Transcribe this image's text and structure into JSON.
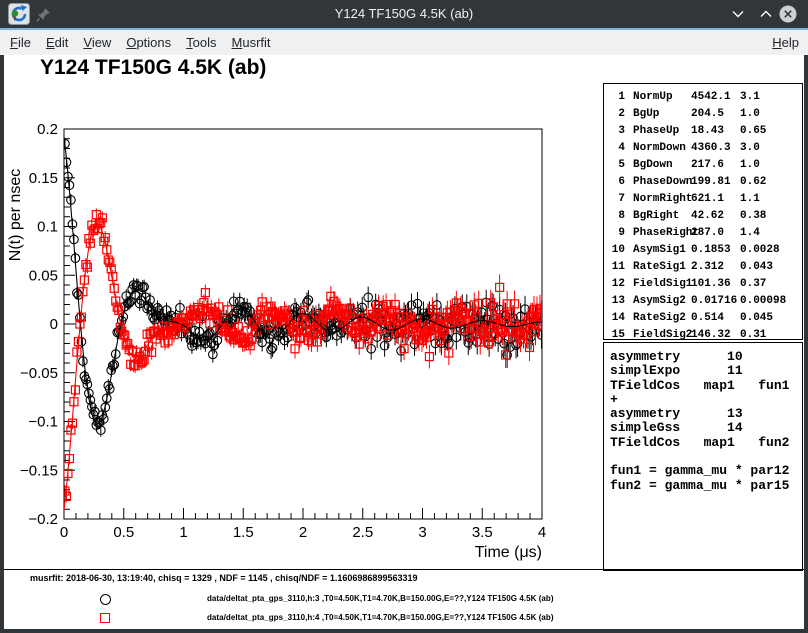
{
  "window": {
    "title": "Y124 TF150G 4.5K (ab)"
  },
  "menu": {
    "items": [
      "File",
      "Edit",
      "View",
      "Options",
      "Tools",
      "Musrfit"
    ],
    "help": "Help"
  },
  "plot_title": "Y124 TF150G 4.5K (ab)",
  "chart_data": {
    "type": "scatter",
    "title": "Y124 TF150G 4.5K (ab)",
    "xlabel": "Time (μs)",
    "ylabel": "N(t) per nsec",
    "xlim": [
      0,
      4
    ],
    "ylim": [
      -0.2,
      0.2
    ],
    "x_major_step": 0.5,
    "x_minor_step": 0.1,
    "y_major_step": 0.05,
    "y_minor_step": 0.01,
    "x_tick_labels": [
      "0",
      "0.5",
      "1",
      "1.5",
      "2",
      "2.5",
      "3",
      "3.5",
      "4"
    ],
    "y_tick_labels": [
      "−0.2",
      "−0.15",
      "−0.1",
      "−0.05",
      "0",
      "0.05",
      "0.1",
      "0.15",
      "0.2"
    ],
    "grid": false,
    "sampling": {
      "t_start": 0.008,
      "t_step": 0.0125,
      "t_end": 4.0
    },
    "noise": {
      "sigma0": 0.006,
      "sigma_slope": 0.002,
      "scatter_factor": 0.9
    },
    "series": [
      {
        "name": "h:3",
        "legend_label": "data/deltat_pta_gps_3110,h:3 ,T0=4.50K,T1=4.70K,B=150.00G,E=??,Y124 TF150G 4.5K (ab)",
        "marker": "circle",
        "color": "#000000",
        "seed": 101,
        "model": {
          "asym1": 0.1853,
          "rate1": 2.312,
          "freq1_mhz": 1.3738,
          "asym2": 0.01716,
          "rate2": 0.514,
          "freq2_mhz": 1.9832,
          "phase_deg": 18.43
        }
      },
      {
        "name": "h:4",
        "legend_label": "data/deltat_pta_gps_3110,h:4 ,T0=4.50K,T1=4.70K,B=150.00G,E=??,Y124 TF150G 4.5K (ab)",
        "marker": "square",
        "color": "#ff0000",
        "seed": 202,
        "model": {
          "asym1": 0.1853,
          "rate1": 2.312,
          "freq1_mhz": 1.3738,
          "asym2": 0.01716,
          "rate2": 0.514,
          "freq2_mhz": 1.9832,
          "phase_deg": 199.81
        }
      }
    ]
  },
  "param_table": {
    "rows": [
      {
        "n": "1",
        "name": "NormUp",
        "value": "4542.1",
        "error": "3.1"
      },
      {
        "n": "2",
        "name": "BgUp",
        "value": "204.5",
        "error": "1.0"
      },
      {
        "n": "3",
        "name": "PhaseUp",
        "value": "18.43",
        "error": "0.65"
      },
      {
        "n": "4",
        "name": "NormDown",
        "value": "4360.3",
        "error": "3.0"
      },
      {
        "n": "5",
        "name": "BgDown",
        "value": "217.6",
        "error": "1.0"
      },
      {
        "n": "6",
        "name": "PhaseDown",
        "value": "199.81",
        "error": "0.62"
      },
      {
        "n": "7",
        "name": "NormRight",
        "value": "621.1",
        "error": "1.1"
      },
      {
        "n": "8",
        "name": "BgRight",
        "value": "42.62",
        "error": "0.38"
      },
      {
        "n": "9",
        "name": "PhaseRight",
        "value": "287.0",
        "error": "1.4"
      },
      {
        "n": "10",
        "name": "AsymSig1",
        "value": "0.1853",
        "error": "0.0028"
      },
      {
        "n": "11",
        "name": "RateSig1",
        "value": "2.312",
        "error": "0.043"
      },
      {
        "n": "12",
        "name": "FieldSig1",
        "value": "101.36",
        "error": "0.37"
      },
      {
        "n": "13",
        "name": "AsymSig2",
        "value": "0.01716",
        "error": "0.00098"
      },
      {
        "n": "14",
        "name": "RateSig2",
        "value": "0.514",
        "error": "0.045"
      },
      {
        "n": "15",
        "name": "FieldSig2",
        "value": "146.32",
        "error": "0.31"
      }
    ]
  },
  "theory": {
    "lines": [
      "asymmetry      10",
      "simplExpo      11",
      "TFieldCos   map1   fun1",
      "+",
      "asymmetry      13",
      "simpleGss      14",
      "TFieldCos   map1   fun2",
      "",
      "fun1 = gamma_mu * par12",
      "fun2 = gamma_mu * par15"
    ]
  },
  "footer": {
    "fit_info": "musrfit: 2018-06-30, 13:19:40, chisq = 1329 , NDF = 1145 , chisq/NDF = 1.1606986899563319",
    "legend": [
      {
        "marker": "circle",
        "color": "#000000",
        "label": "data/deltat_pta_gps_3110,h:3 ,T0=4.50K,T1=4.70K,B=150.00G,E=??,Y124 TF150G 4.5K (ab)"
      },
      {
        "marker": "square",
        "color": "#ff0000",
        "label": "data/deltat_pta_gps_3110,h:4 ,T0=4.50K,T1=4.70K,B=150.00G,E=??,Y124 TF150G 4.5K (ab)"
      }
    ]
  }
}
